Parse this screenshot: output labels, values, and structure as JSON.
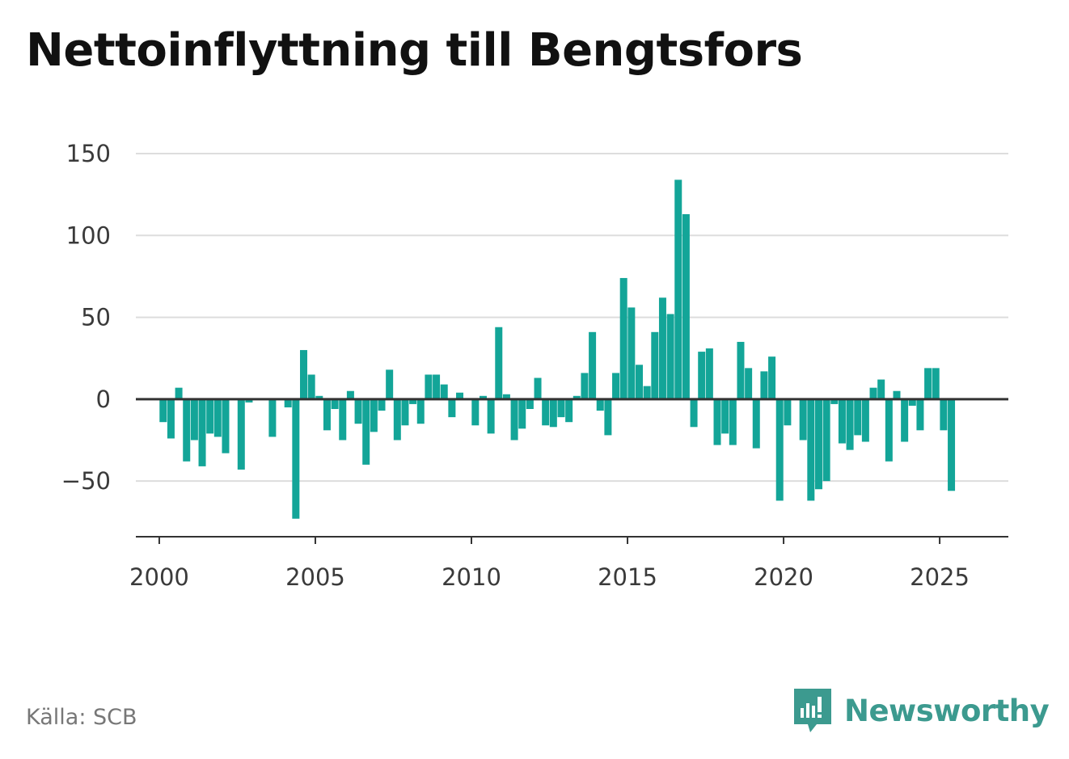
{
  "title": "Nettoinflyttning till Bengtsfors",
  "source": "Källa: SCB",
  "brand": {
    "name": "Newsworthy",
    "icon": "newsworthy-logo-icon",
    "color": "#3c9a8f"
  },
  "colors": {
    "bar": "#13a598",
    "grid": "#dddddd",
    "axis": "#333333"
  },
  "chart_data": {
    "type": "bar",
    "title": "Nettoinflyttning till Bengtsfors",
    "xlabel": "",
    "ylabel": "",
    "ylim": [
      -84,
      150
    ],
    "xlim": [
      1999.25,
      2027.2
    ],
    "yticks": [
      150,
      100,
      50,
      0,
      -50
    ],
    "ytick_labels": [
      "150",
      "100",
      "50",
      "0",
      "−50"
    ],
    "xticks": [
      2000,
      2005,
      2010,
      2015,
      2020,
      2025
    ],
    "xtick_labels": [
      "2000",
      "2005",
      "2010",
      "2015",
      "2020",
      "2025"
    ],
    "grid": true,
    "legend": "none",
    "series": [
      {
        "x": [
          2000.125,
          2000.375,
          2000.625,
          2000.875,
          2001.125,
          2001.375,
          2001.625,
          2001.875,
          2002.125,
          2002.375,
          2002.625,
          2002.875,
          2003.125,
          2003.375,
          2003.625,
          2003.875,
          2004.125,
          2004.375,
          2004.625,
          2004.875,
          2005.125,
          2005.375,
          2005.625,
          2005.875,
          2006.125,
          2006.375,
          2006.625,
          2006.875,
          2007.125,
          2007.375,
          2007.625,
          2007.875,
          2008.125,
          2008.375,
          2008.625,
          2008.875,
          2009.125,
          2009.375,
          2009.625,
          2009.875,
          2010.125,
          2010.375,
          2010.625,
          2010.875,
          2011.125,
          2011.375,
          2011.625,
          2011.875,
          2012.125,
          2012.375,
          2012.625,
          2012.875,
          2013.125,
          2013.375,
          2013.625,
          2013.875,
          2014.125,
          2014.375,
          2014.625,
          2014.875,
          2015.125,
          2015.375,
          2015.625,
          2015.875,
          2016.125,
          2016.375,
          2016.625,
          2016.875,
          2017.125,
          2017.375,
          2017.625,
          2017.875,
          2018.125,
          2018.375,
          2018.625,
          2018.875,
          2019.125,
          2019.375,
          2019.625,
          2019.875,
          2020.125,
          2020.375,
          2020.625,
          2020.875,
          2021.125,
          2021.375,
          2021.625,
          2021.875,
          2022.125,
          2022.375,
          2022.625,
          2022.875,
          2023.125,
          2023.375,
          2023.625,
          2023.875,
          2024.125,
          2024.375,
          2024.625,
          2024.875,
          2025.125,
          2025.375
        ],
        "values": [
          -14,
          -24,
          7,
          -38,
          -25,
          -41,
          -21,
          -23,
          -33,
          0,
          -43,
          -2,
          0,
          0,
          -23,
          0,
          -5,
          -73,
          30,
          15,
          2,
          -19,
          -6,
          -25,
          5,
          -15,
          -40,
          -20,
          -7,
          18,
          -25,
          -16,
          -3,
          -15,
          15,
          15,
          9,
          -11,
          4,
          0,
          -16,
          2,
          -21,
          44,
          3,
          -25,
          -18,
          -6,
          13,
          -16,
          -17,
          -11,
          -14,
          2,
          16,
          41,
          -7,
          -22,
          16,
          74,
          56,
          21,
          8,
          41,
          62,
          52,
          134,
          113,
          -17,
          29,
          31,
          -28,
          -21,
          -28,
          35,
          19,
          -30,
          17,
          26,
          -62,
          -16,
          0,
          -25,
          -62,
          -55,
          -50,
          -3,
          -27,
          -31,
          -22,
          -26,
          7,
          12,
          -38,
          5,
          -26,
          -4,
          -19,
          19,
          19,
          -19,
          -56
        ]
      }
    ]
  }
}
